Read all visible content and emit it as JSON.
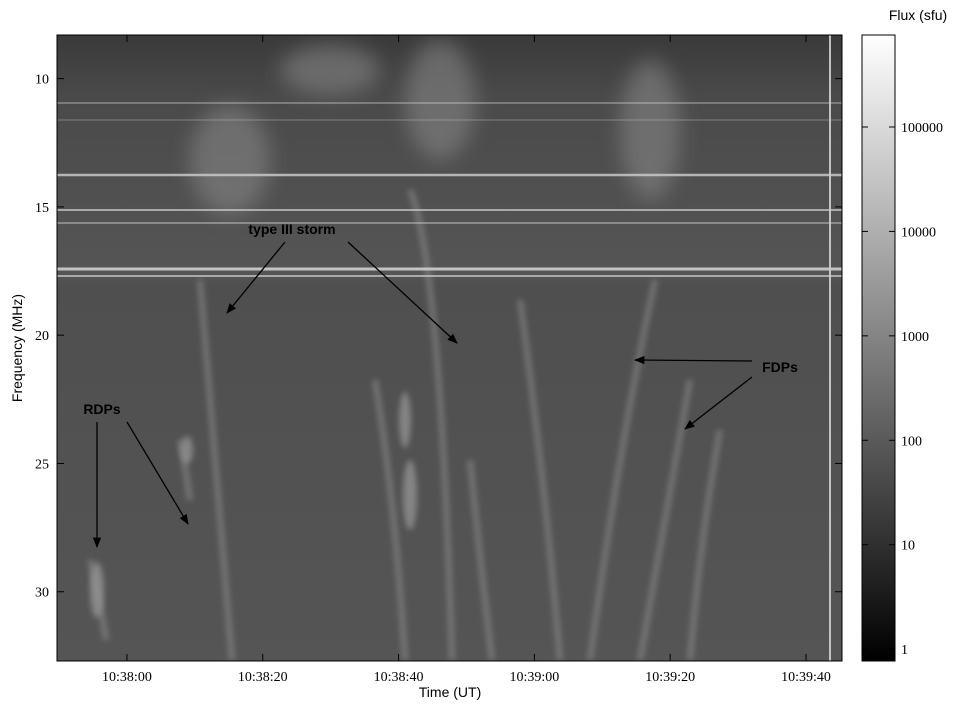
{
  "chart_data": {
    "type": "heatmap",
    "x_label": "Time (UT)",
    "y_label": "Frequency (MHz)",
    "colorbar_label": "Flux (sfu)",
    "xlim": [
      38269.7,
      38385.3
    ],
    "xticks": [
      {
        "value": 38280,
        "label": "10:38:00"
      },
      {
        "value": 38300,
        "label": "10:38:20"
      },
      {
        "value": 38320,
        "label": "10:38:40"
      },
      {
        "value": 38340,
        "label": "10:39:00"
      },
      {
        "value": 38360,
        "label": "10:39:20"
      },
      {
        "value": 38380,
        "label": "10:39:40"
      }
    ],
    "ylim": [
      32.7,
      8.3
    ],
    "yticks": [
      10,
      15,
      20,
      25,
      30
    ],
    "colorbar_scale": "log",
    "clim": [
      0.77,
      760000
    ],
    "colorbar_ticks": [
      1,
      10,
      100,
      1000,
      10000,
      100000
    ],
    "colormap": [
      "#000000",
      "#ffffff"
    ],
    "annotations": [
      "type III storm",
      "FDPs",
      "RDPs"
    ]
  }
}
